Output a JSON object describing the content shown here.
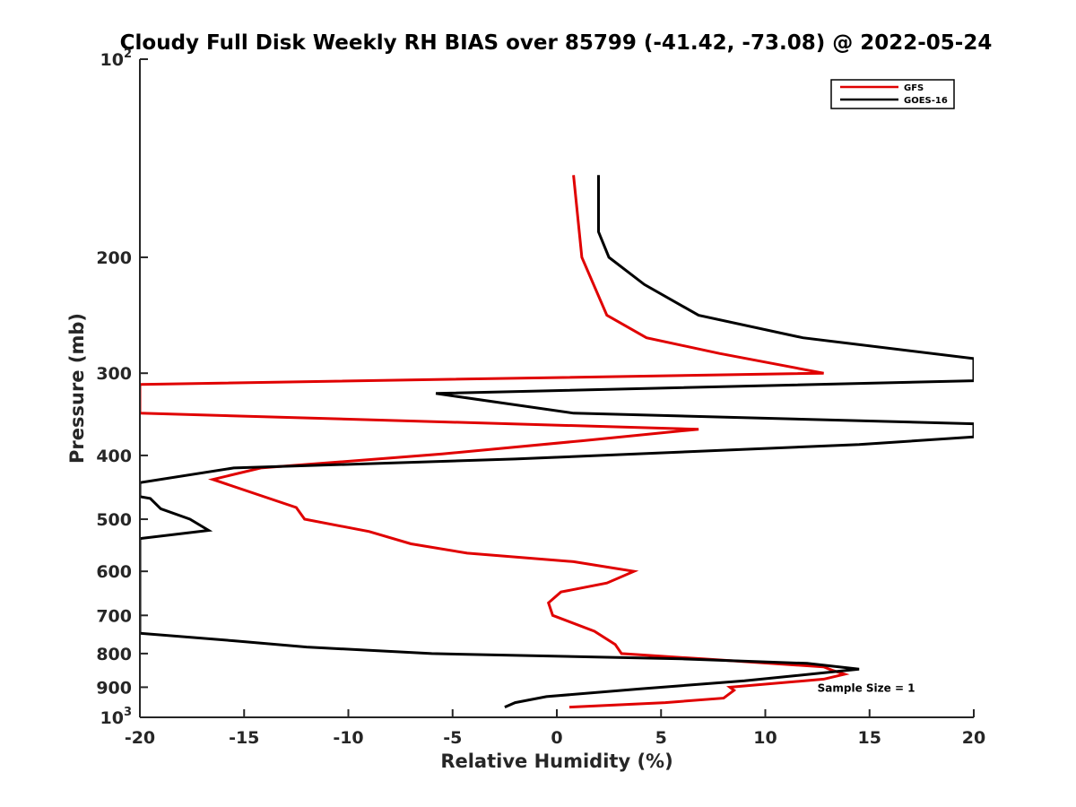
{
  "colors": {
    "gfs": "#e00000",
    "goes": "#000000",
    "axis": "#262626"
  },
  "chart_data": {
    "type": "line",
    "title": "Cloudy Full Disk Weekly RH BIAS over 85799 (-41.42, -73.08) @ 2022-05-24",
    "xlabel": "Relative Humidity (%)",
    "ylabel": "Pressure (mb)",
    "xlim": [
      -20,
      20
    ],
    "ylim": [
      100,
      1000
    ],
    "yscale": "log",
    "y_reversed": true,
    "grid": false,
    "legend_position": "top-right",
    "x_ticks": [
      "-20",
      "-15",
      "-10",
      "-5",
      "0",
      "5",
      "10",
      "15",
      "20"
    ],
    "y_ticks": [
      {
        "value": 100,
        "base": "10",
        "exp": "2"
      },
      {
        "value": 200,
        "label": "200"
      },
      {
        "value": 300,
        "label": "300"
      },
      {
        "value": 400,
        "label": "400"
      },
      {
        "value": 500,
        "label": "500"
      },
      {
        "value": 600,
        "label": "600"
      },
      {
        "value": 700,
        "label": "700"
      },
      {
        "value": 800,
        "label": "800"
      },
      {
        "value": 900,
        "label": "900"
      },
      {
        "value": 1000,
        "base": "10",
        "exp": "3"
      }
    ],
    "annotation": {
      "text": "Sample Size = 1",
      "x": 12.5,
      "y": 900
    },
    "series": [
      {
        "name": "GFS",
        "color": "#e00000",
        "points": [
          [
            0.8,
            150
          ],
          [
            1.2,
            200
          ],
          [
            2.4,
            245
          ],
          [
            4.3,
            265
          ],
          [
            7.8,
            280
          ],
          [
            12.8,
            300
          ],
          [
            -20,
            312
          ],
          [
            -20,
            345
          ],
          [
            6.8,
            365
          ],
          [
            1.2,
            380
          ],
          [
            -5.5,
            398
          ],
          [
            -14.2,
            418
          ],
          [
            -16.5,
            435
          ],
          [
            -12.5,
            480
          ],
          [
            -12.1,
            500
          ],
          [
            -9,
            522
          ],
          [
            -7,
            545
          ],
          [
            -4.3,
            563
          ],
          [
            0.8,
            580
          ],
          [
            3.7,
            600
          ],
          [
            2.4,
            625
          ],
          [
            0.2,
            645
          ],
          [
            -0.4,
            670
          ],
          [
            -0.2,
            700
          ],
          [
            1.8,
            740
          ],
          [
            2.8,
            775
          ],
          [
            3.1,
            800
          ],
          [
            7,
            815
          ],
          [
            12.8,
            838
          ],
          [
            13.2,
            848
          ],
          [
            13.8,
            860
          ],
          [
            12.8,
            875
          ],
          [
            8.3,
            900
          ],
          [
            8.5,
            910
          ],
          [
            8,
            935
          ],
          [
            5.2,
            950
          ],
          [
            0.6,
            965
          ]
        ]
      },
      {
        "name": "GOES-16",
        "color": "#000000",
        "points": [
          [
            2,
            150
          ],
          [
            2,
            183
          ],
          [
            2.5,
            200
          ],
          [
            4.2,
            220
          ],
          [
            6.8,
            245
          ],
          [
            11.8,
            265
          ],
          [
            20,
            285
          ],
          [
            20,
            308
          ],
          [
            -5.8,
            322
          ],
          [
            0.8,
            345
          ],
          [
            20,
            358
          ],
          [
            20,
            375
          ],
          [
            14.5,
            385
          ],
          [
            6.2,
            395
          ],
          [
            -2,
            405
          ],
          [
            -15.5,
            418
          ],
          [
            -20,
            440
          ],
          [
            -20,
            462
          ],
          [
            -19.5,
            465
          ],
          [
            -19,
            482
          ],
          [
            -17.6,
            500
          ],
          [
            -16.7,
            520
          ],
          [
            -20,
            535
          ],
          [
            -20,
            745
          ],
          [
            -15.5,
            765
          ],
          [
            -12,
            782
          ],
          [
            -6,
            800
          ],
          [
            6,
            815
          ],
          [
            12,
            828
          ],
          [
            14.5,
            845
          ],
          [
            9,
            880
          ],
          [
            4,
            905
          ],
          [
            -0.5,
            930
          ],
          [
            -2,
            950
          ],
          [
            -2.5,
            965
          ]
        ]
      }
    ]
  }
}
